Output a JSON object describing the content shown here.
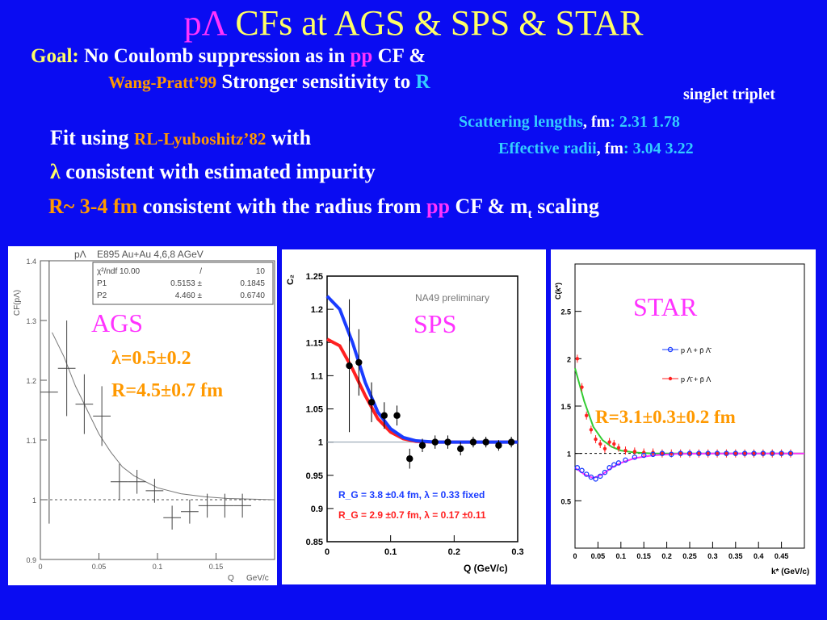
{
  "slide": {
    "title_p": "p",
    "title_lambda": "Λ",
    "title_rest": " CFs at AGS & SPS & STAR",
    "goal_label": "Goal",
    "goal_colon": ":",
    "goal_text": " No Coulomb suppression as in ",
    "goal_pp": "pp",
    "goal_text2": " CF &",
    "ref_wang": "Wang-Pratt’99",
    "stronger": " Stronger sensitivity to ",
    "stronger_R": "R",
    "singlet_triplet": "singlet  triplet",
    "scatt_label": "Scattering lengths",
    "scatt_unit": ", fm",
    "scatt_vals": ":  2.31    1.78",
    "eff_label": "Effective radii",
    "eff_unit": ", fm",
    "eff_vals": ":  3.04    3.22",
    "fit_using": "Fit using ",
    "fit_ref": " RL-Lyuboshitz’82",
    "fit_with": " with",
    "lambda_sym": "λ",
    "lambda_text": " consistent with estimated impurity",
    "r_val": "R~ 3-4 fm",
    "r_text": " consistent with the radius from ",
    "r_pp": "pp",
    "r_text2": " CF  &  m",
    "r_sub": "t",
    "r_text3": " scaling"
  },
  "colors": {
    "background": "#0a0cf2",
    "yellow": "#ffff66",
    "magenta": "#ff33ff",
    "orange": "#ff9900",
    "cyan": "#33ccff",
    "white": "#ffffff"
  },
  "chart_data": [
    {
      "type": "scatter",
      "id": "ags",
      "label": "AGS",
      "annot1": "λ=0.5±0.2",
      "annot2": "R=4.5±0.7 fm",
      "header_name": "pΛ",
      "header_desc": "E895 Au+Au 4,6,8 AGeV",
      "stat_rows": [
        [
          "χ²/ndf 10.00",
          "/",
          "10"
        ],
        [
          "P1",
          "0.5153 ±",
          "0.1845"
        ],
        [
          "P2",
          "4.460 ±",
          "0.6740"
        ]
      ],
      "ylabel": "CF(pΛ)",
      "xlabel": "Q",
      "xunit": "GeV/c",
      "xlim": [
        0,
        0.2
      ],
      "ylim": [
        0.9,
        1.4
      ],
      "xticks": [
        0,
        0.05,
        0.1,
        0.15
      ],
      "xtick_labels": [
        "0",
        "0.05",
        "0.1",
        "0.15"
      ],
      "yticks": [
        0.9,
        1.0,
        1.1,
        1.2,
        1.3,
        1.4
      ],
      "ytick_labels": [
        "0.9",
        "1",
        "1.1",
        "1.2",
        "1.3",
        "1.4"
      ],
      "baseline": 1.0,
      "points": [
        {
          "x": 0.0075,
          "y": 1.18,
          "ey": 0.22,
          "ex": 0.0075
        },
        {
          "x": 0.0225,
          "y": 1.22,
          "ey": 0.08,
          "ex": 0.0075
        },
        {
          "x": 0.0375,
          "y": 1.16,
          "ey": 0.05,
          "ex": 0.0075
        },
        {
          "x": 0.0525,
          "y": 1.14,
          "ey": 0.05,
          "ex": 0.0075
        },
        {
          "x": 0.0675,
          "y": 1.03,
          "ey": 0.03,
          "ex": 0.0075
        },
        {
          "x": 0.0825,
          "y": 1.03,
          "ey": 0.02,
          "ex": 0.0075
        },
        {
          "x": 0.0975,
          "y": 1.015,
          "ey": 0.02,
          "ex": 0.0075
        },
        {
          "x": 0.1125,
          "y": 0.97,
          "ey": 0.02,
          "ex": 0.0075
        },
        {
          "x": 0.1275,
          "y": 0.98,
          "ey": 0.02,
          "ex": 0.0075
        },
        {
          "x": 0.1425,
          "y": 0.99,
          "ey": 0.02,
          "ex": 0.0075
        },
        {
          "x": 0.1575,
          "y": 0.99,
          "ey": 0.02,
          "ex": 0.0075
        },
        {
          "x": 0.1725,
          "y": 0.99,
          "ey": 0.02,
          "ex": 0.0075
        }
      ],
      "fit": [
        [
          0.01,
          1.28
        ],
        [
          0.02,
          1.24
        ],
        [
          0.03,
          1.19
        ],
        [
          0.04,
          1.15
        ],
        [
          0.05,
          1.11
        ],
        [
          0.06,
          1.08
        ],
        [
          0.07,
          1.055
        ],
        [
          0.08,
          1.04
        ],
        [
          0.09,
          1.03
        ],
        [
          0.1,
          1.02
        ],
        [
          0.12,
          1.01
        ],
        [
          0.14,
          1.005
        ],
        [
          0.16,
          1.002
        ],
        [
          0.18,
          1.001
        ],
        [
          0.2,
          1.0
        ]
      ]
    },
    {
      "type": "scatter",
      "id": "sps",
      "label": "SPS",
      "watermark": "NA49 preliminary",
      "ylabel": "C₂",
      "xlabel": "Q (GeV/c)",
      "xlim": [
        0,
        0.3
      ],
      "ylim": [
        0.85,
        1.25
      ],
      "xticks": [
        0,
        0.1,
        0.2,
        0.3
      ],
      "xtick_labels": [
        "0",
        "0.1",
        "0.2",
        "0.3"
      ],
      "yticks": [
        0.85,
        0.9,
        0.95,
        1.0,
        1.05,
        1.1,
        1.15,
        1.2,
        1.25
      ],
      "ytick_labels": [
        "0.85",
        "0.9",
        "0.95",
        "1",
        "1.05",
        "1.1",
        "1.15",
        "1.2",
        "1.25"
      ],
      "baseline": 1.0,
      "legend": [
        {
          "text": "R_G = 3.8 ±0.4 fm, λ = 0.33 fixed",
          "color": "#1a3cff"
        },
        {
          "text": "R_G = 2.9 ±0.7 fm, λ = 0.17 ±0.11",
          "color": "#ff2020"
        }
      ],
      "points": [
        {
          "x": 0.035,
          "y": 1.115,
          "ey": 0.1
        },
        {
          "x": 0.05,
          "y": 1.12,
          "ey": 0.05
        },
        {
          "x": 0.07,
          "y": 1.06,
          "ey": 0.03
        },
        {
          "x": 0.09,
          "y": 1.04,
          "ey": 0.02
        },
        {
          "x": 0.11,
          "y": 1.04,
          "ey": 0.015
        },
        {
          "x": 0.13,
          "y": 0.975,
          "ey": 0.015
        },
        {
          "x": 0.15,
          "y": 0.995,
          "ey": 0.01
        },
        {
          "x": 0.17,
          "y": 1.0,
          "ey": 0.01
        },
        {
          "x": 0.19,
          "y": 1.0,
          "ey": 0.01
        },
        {
          "x": 0.21,
          "y": 0.99,
          "ey": 0.01
        },
        {
          "x": 0.23,
          "y": 1.0,
          "ey": 0.008
        },
        {
          "x": 0.25,
          "y": 1.0,
          "ey": 0.008
        },
        {
          "x": 0.27,
          "y": 0.995,
          "ey": 0.008
        },
        {
          "x": 0.29,
          "y": 1.0,
          "ey": 0.008
        }
      ],
      "fit_blue": [
        [
          0,
          1.22
        ],
        [
          0.02,
          1.2
        ],
        [
          0.04,
          1.15
        ],
        [
          0.06,
          1.09
        ],
        [
          0.08,
          1.045
        ],
        [
          0.1,
          1.02
        ],
        [
          0.12,
          1.007
        ],
        [
          0.14,
          1.002
        ],
        [
          0.17,
          1.0
        ],
        [
          0.3,
          1.0
        ]
      ],
      "fit_red": [
        [
          0,
          1.155
        ],
        [
          0.02,
          1.145
        ],
        [
          0.04,
          1.11
        ],
        [
          0.06,
          1.07
        ],
        [
          0.08,
          1.035
        ],
        [
          0.1,
          1.015
        ],
        [
          0.12,
          1.005
        ],
        [
          0.14,
          1.001
        ],
        [
          0.17,
          1.0
        ],
        [
          0.3,
          1.0
        ]
      ]
    },
    {
      "type": "scatter",
      "id": "star",
      "label": "STAR",
      "annot": "R=3.1±0.3±0.2 fm",
      "ylabel": "C(k*)",
      "xlabel": "k* (GeV/c)",
      "xlim": [
        0,
        0.5
      ],
      "ylim": [
        0,
        3
      ],
      "xticks": [
        0,
        0.05,
        0.1,
        0.15,
        0.2,
        0.25,
        0.3,
        0.35,
        0.4,
        0.45
      ],
      "xtick_labels": [
        "0",
        "0.05",
        "0.1",
        "0.15",
        "0.2",
        "0.25",
        "0.3",
        "0.35",
        "0.4",
        "0.45"
      ],
      "yticks": [
        0.5,
        1,
        1.5,
        2,
        2.5
      ],
      "ytick_labels": [
        "0.5",
        "1",
        "1.5",
        "2",
        "2.5"
      ],
      "baseline": 1.0,
      "legend": [
        {
          "text": "p Λ + p̄ Λ̄",
          "color": "#1a3cff"
        },
        {
          "text": "p Λ̄ + p̄ Λ",
          "color": "#ff2020"
        }
      ],
      "series_blue": [
        [
          0.005,
          0.85
        ],
        [
          0.015,
          0.82
        ],
        [
          0.025,
          0.78
        ],
        [
          0.035,
          0.75
        ],
        [
          0.045,
          0.73
        ],
        [
          0.055,
          0.76
        ],
        [
          0.065,
          0.8
        ],
        [
          0.075,
          0.85
        ],
        [
          0.085,
          0.88
        ],
        [
          0.095,
          0.9
        ],
        [
          0.11,
          0.93
        ],
        [
          0.13,
          0.96
        ],
        [
          0.15,
          0.98
        ],
        [
          0.17,
          0.99
        ],
        [
          0.19,
          1.0
        ],
        [
          0.21,
          0.99
        ],
        [
          0.23,
          1.0
        ],
        [
          0.25,
          1.0
        ],
        [
          0.27,
          1.0
        ],
        [
          0.29,
          1.0
        ],
        [
          0.31,
          1.0
        ],
        [
          0.33,
          1.0
        ],
        [
          0.35,
          1.0
        ],
        [
          0.37,
          1.0
        ],
        [
          0.39,
          1.0
        ],
        [
          0.41,
          1.0
        ],
        [
          0.43,
          1.0
        ],
        [
          0.45,
          1.0
        ],
        [
          0.47,
          1.0
        ]
      ],
      "series_red": [
        [
          0.005,
          2.0
        ],
        [
          0.015,
          1.7
        ],
        [
          0.025,
          1.4
        ],
        [
          0.035,
          1.25
        ],
        [
          0.045,
          1.15
        ],
        [
          0.055,
          1.1
        ],
        [
          0.065,
          1.05
        ],
        [
          0.075,
          1.12
        ],
        [
          0.085,
          1.1
        ],
        [
          0.095,
          1.06
        ],
        [
          0.11,
          1.03
        ],
        [
          0.13,
          1.02
        ],
        [
          0.15,
          1.01
        ],
        [
          0.17,
          1.01
        ],
        [
          0.19,
          1.0
        ],
        [
          0.21,
          1.0
        ],
        [
          0.23,
          1.0
        ],
        [
          0.25,
          1.0
        ],
        [
          0.27,
          1.0
        ],
        [
          0.29,
          1.0
        ],
        [
          0.31,
          1.0
        ],
        [
          0.33,
          1.0
        ],
        [
          0.35,
          1.0
        ],
        [
          0.37,
          1.0
        ],
        [
          0.39,
          1.0
        ],
        [
          0.41,
          1.0
        ],
        [
          0.43,
          1.0
        ],
        [
          0.45,
          1.0
        ],
        [
          0.47,
          1.0
        ]
      ],
      "fit_green": [
        [
          0,
          1.9
        ],
        [
          0.02,
          1.55
        ],
        [
          0.04,
          1.28
        ],
        [
          0.06,
          1.14
        ],
        [
          0.08,
          1.07
        ],
        [
          0.1,
          1.03
        ],
        [
          0.13,
          1.01
        ],
        [
          0.17,
          1.0
        ],
        [
          0.5,
          1.0
        ]
      ],
      "fit_magenta": [
        [
          0,
          0.85
        ],
        [
          0.02,
          0.78
        ],
        [
          0.04,
          0.74
        ],
        [
          0.06,
          0.78
        ],
        [
          0.08,
          0.85
        ],
        [
          0.1,
          0.9
        ],
        [
          0.13,
          0.95
        ],
        [
          0.17,
          0.98
        ],
        [
          0.22,
          0.995
        ],
        [
          0.3,
          1.0
        ],
        [
          0.5,
          1.0
        ]
      ]
    }
  ]
}
